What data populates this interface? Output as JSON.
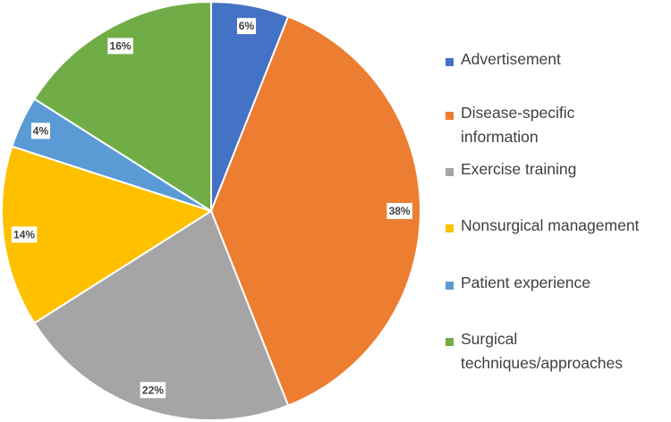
{
  "chart_data": {
    "type": "pie",
    "title": "",
    "start": "top",
    "direction": "clockwise",
    "legend_position": "right",
    "slices": [
      {
        "label": "Advertisement",
        "value": 6,
        "data_label": "6%",
        "color": "#4472C4"
      },
      {
        "label": "Disease-specific information",
        "value": 38,
        "data_label": "38%",
        "color": "#ED7D31"
      },
      {
        "label": "Exercise training",
        "value": 22,
        "data_label": "22%",
        "color": "#A5A5A5"
      },
      {
        "label": "Nonsurgical management",
        "value": 14,
        "data_label": "14%",
        "color": "#FFC000"
      },
      {
        "label": "Patient experience",
        "value": 4,
        "data_label": "4%",
        "color": "#5B9BD5"
      },
      {
        "label": "Surgical techniques/approaches",
        "value": 16,
        "data_label": "16%",
        "color": "#70AD47"
      }
    ],
    "legend_lines": [
      [
        "Advertisement"
      ],
      [
        "Disease-specific",
        "information"
      ],
      [
        "Exercise training"
      ],
      [
        "Nonsurgical management"
      ],
      [
        "Patient experience"
      ],
      [
        "Surgical",
        "techniques/approaches"
      ]
    ]
  }
}
